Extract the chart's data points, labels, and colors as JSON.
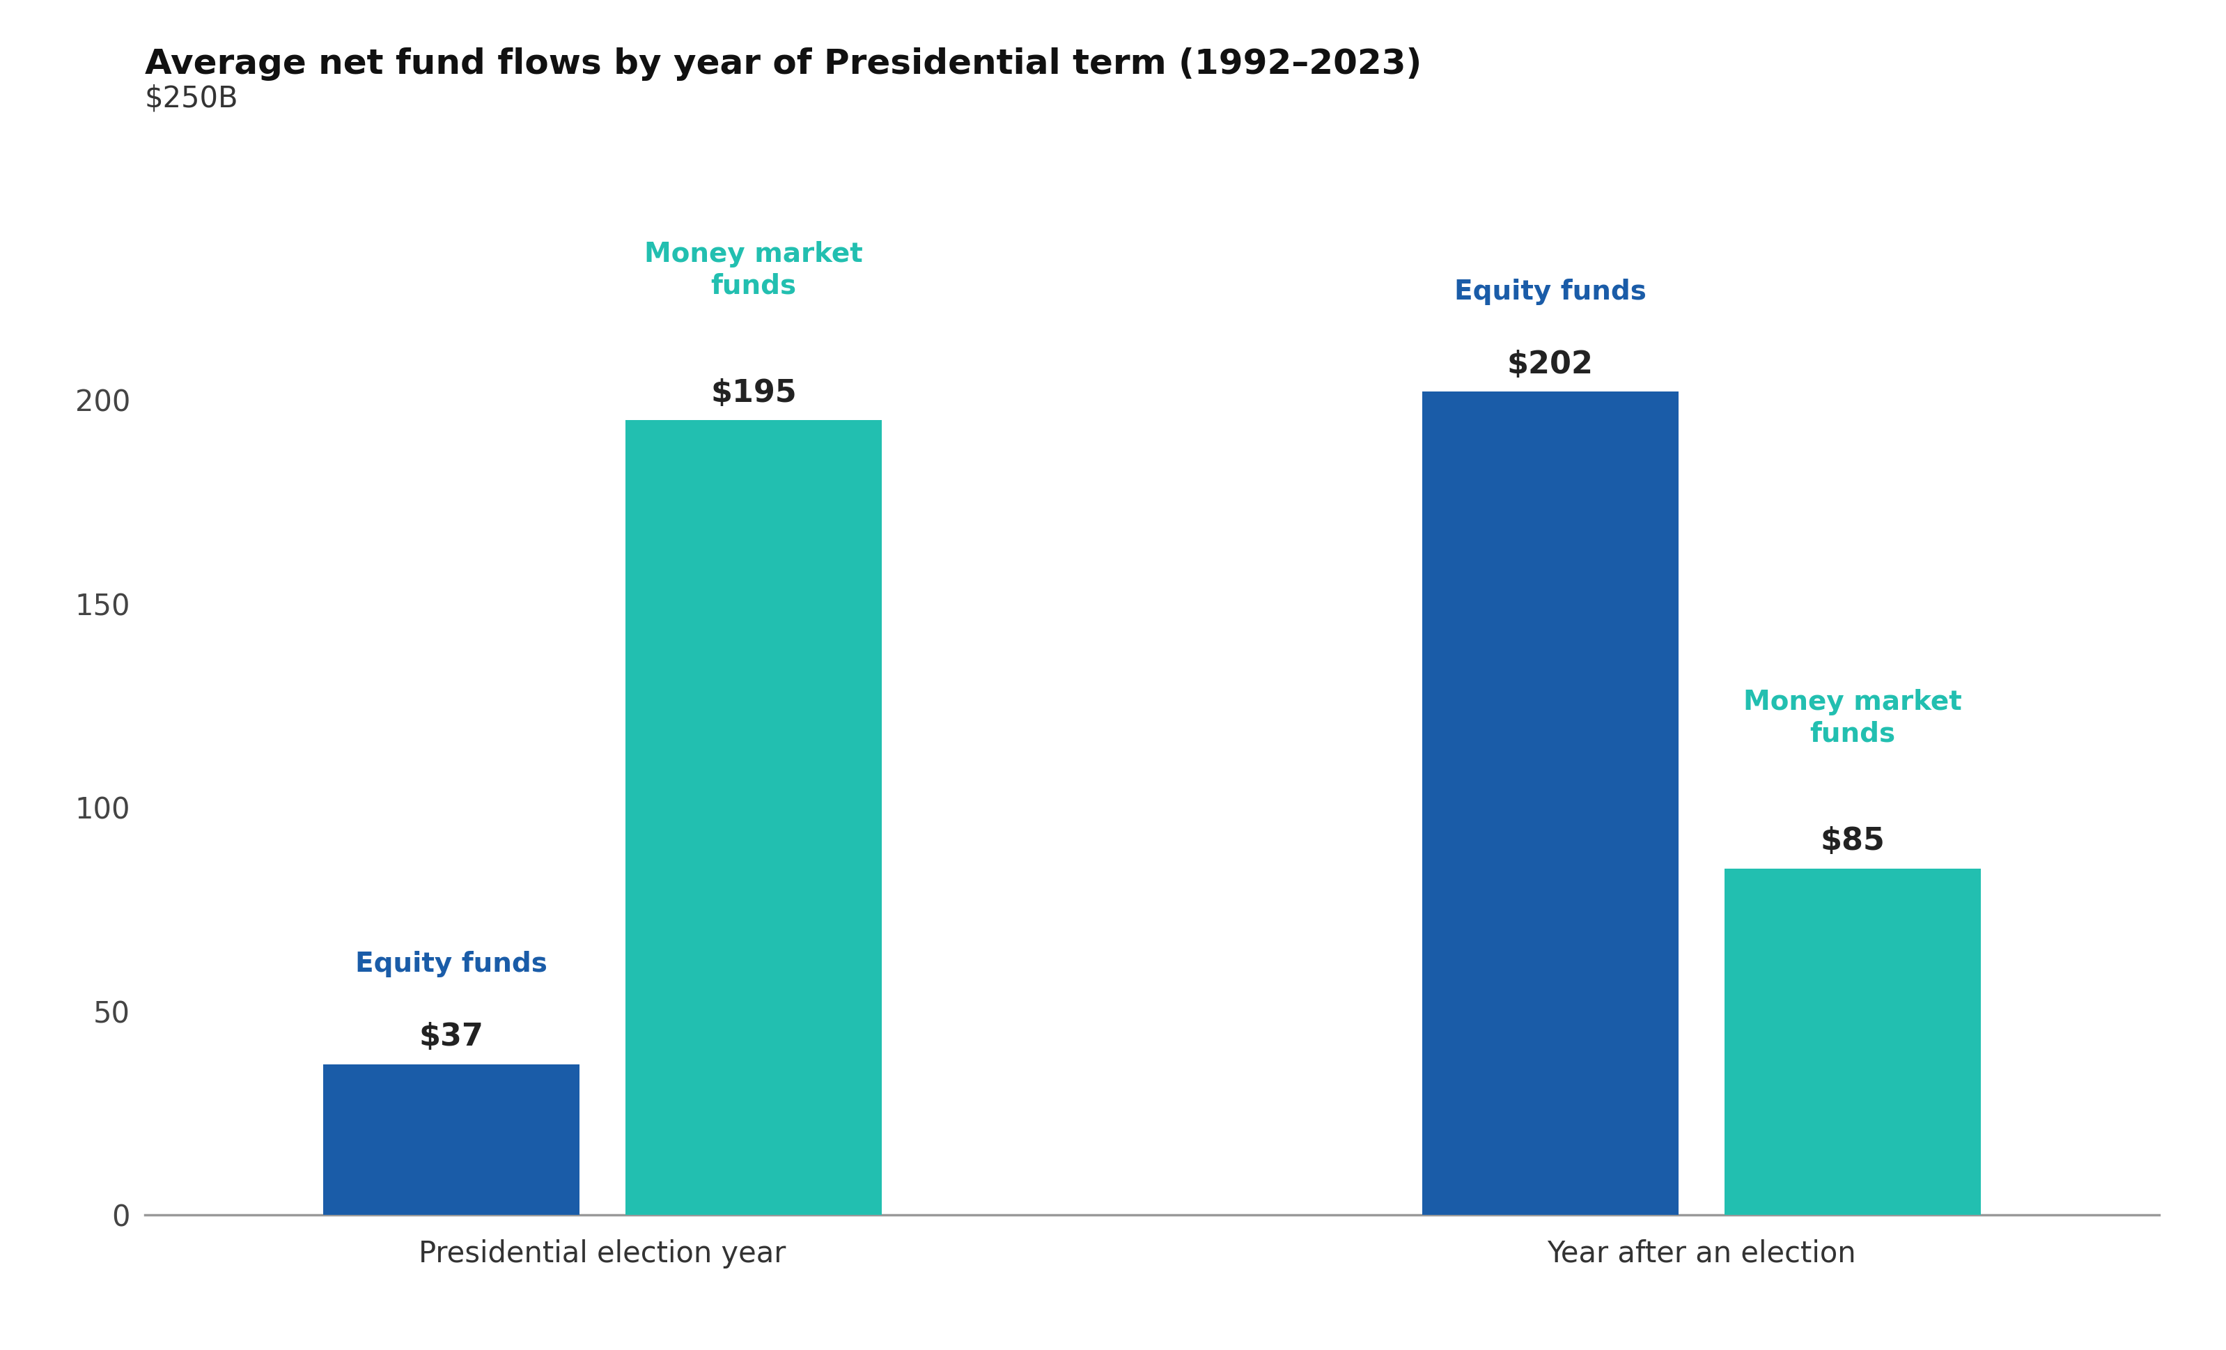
{
  "title": "Average net fund flows by year of Presidential term (1992–2023)",
  "title_fontsize": 36,
  "title_fontweight": "bold",
  "background_color": "#ffffff",
  "groups": [
    "Presidential election year",
    "Year after an election"
  ],
  "series": [
    {
      "label": "Equity funds",
      "values": [
        37,
        202
      ],
      "color": "#1a5ca8"
    },
    {
      "label": "Money market\nfunds",
      "values": [
        195,
        85
      ],
      "color": "#22bfb0"
    }
  ],
  "ylabel_top": "$250B",
  "yticks": [
    0,
    50,
    100,
    150,
    200
  ],
  "ylim": [
    0,
    265
  ],
  "bar_width": 0.28,
  "bar_gap": 0.05,
  "group_centers": [
    0.5,
    1.7
  ],
  "xlim": [
    0.0,
    2.2
  ],
  "xlabel_fontsize": 30,
  "tick_fontsize": 30,
  "annotation_label_fontsize": 28,
  "annotation_value_fontsize": 32,
  "axis_line_color": "#999999",
  "annotations": [
    {
      "group": 0,
      "series": 0,
      "label": "Equity funds",
      "value_label": "$37",
      "label_color": "#1a5ca8",
      "value_color": "#222222"
    },
    {
      "group": 0,
      "series": 1,
      "label": "Money market\nfunds",
      "value_label": "$195",
      "label_color": "#22bfb0",
      "value_color": "#222222"
    },
    {
      "group": 1,
      "series": 0,
      "label": "Equity funds",
      "value_label": "$202",
      "label_color": "#1a5ca8",
      "value_color": "#222222"
    },
    {
      "group": 1,
      "series": 1,
      "label": "Money market\nfunds",
      "value_label": "$85",
      "label_color": "#22bfb0",
      "value_color": "#222222"
    }
  ]
}
